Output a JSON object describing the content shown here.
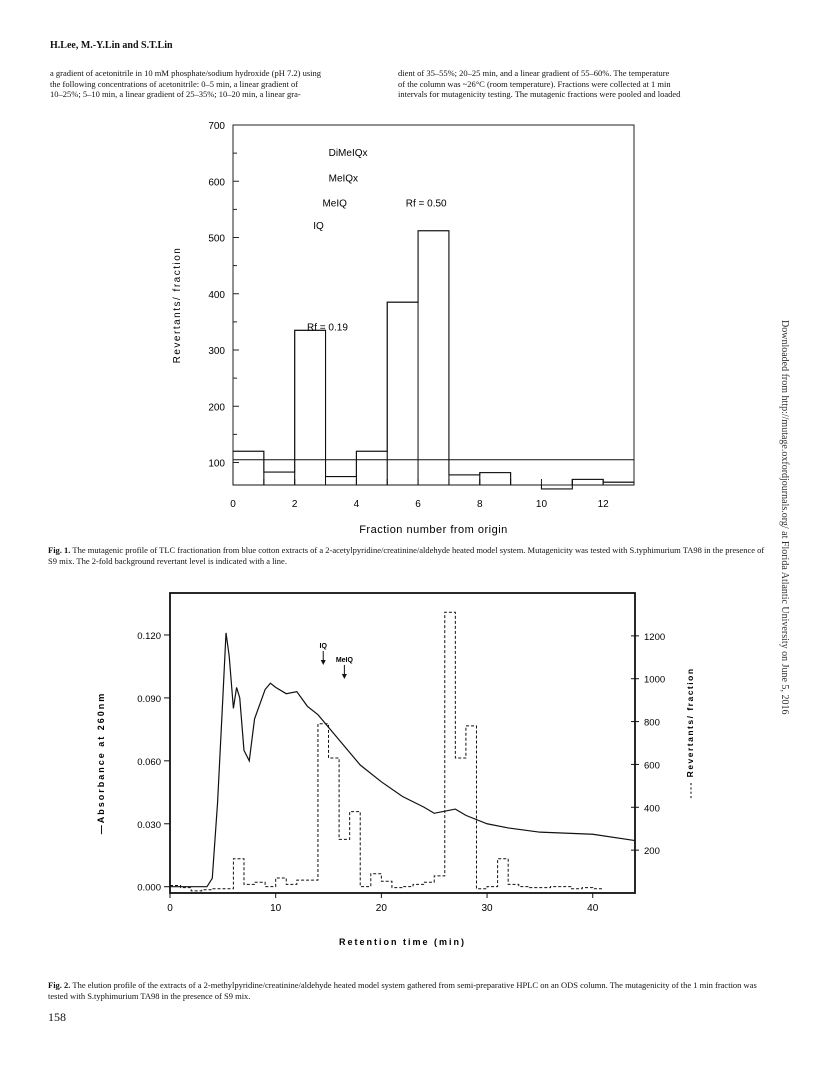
{
  "running_head": "H.Lee, M.-Y.Lin and S.T.Lin",
  "body_left": [
    "a gradient of acetonitrile in 10 mM phosphate/sodium hydroxide (pH 7.2) using",
    "the following concentrations of acetonitrile: 0–5 min, a linear gradient of",
    "10–25%; 5–10 min, a linear gradient of 25–35%; 10–20 min, a linear gra-"
  ],
  "body_right": [
    "dient of 35–55%; 20–25 min, and a linear gradient of 55–60%. The temperature",
    "of the column was ~26°C (room temperature). Fractions were collected at 1 min",
    "intervals for mutagenicity testing. The mutagenic fractions were pooled and loaded"
  ],
  "side_note": "Downloaded from http://mutage.oxfordjournals.org/ at Florida Atlantic University on June 5, 2016",
  "chart_data": [
    {
      "type": "bar",
      "subtype": "step-histogram",
      "xlabel": "Fraction  number  from  origin",
      "ylabel": "Revertants/  fraction",
      "xlim": [
        0,
        13
      ],
      "ylim": [
        60,
        700
      ],
      "x_ticks": [
        0,
        2,
        4,
        6,
        8,
        10,
        12
      ],
      "y_ticks": [
        100,
        200,
        300,
        400,
        500,
        600,
        700
      ],
      "fractions": [
        0,
        1,
        2,
        3,
        4,
        5,
        6,
        7,
        8,
        9,
        10,
        11,
        12
      ],
      "values": [
        120,
        83,
        335,
        75,
        120,
        385,
        512,
        78,
        82,
        60,
        53,
        70,
        65
      ],
      "background_line": 105,
      "annotations": [
        {
          "text": "DiMeIQx",
          "x": 3.1,
          "y": 645
        },
        {
          "text": "MeIQx",
          "x": 3.1,
          "y": 600
        },
        {
          "text": "MeIQ",
          "x": 2.9,
          "y": 555
        },
        {
          "text": "IQ",
          "x": 2.6,
          "y": 515
        },
        {
          "text": "Rf = 0.19",
          "x": 2.4,
          "y": 335
        },
        {
          "text": "Rf = 0.50",
          "x": 5.6,
          "y": 555
        }
      ],
      "grid": false
    },
    {
      "type": "line",
      "xlabel": "Retention  time   (min)",
      "ylabel": "Absorbance  at  260nm",
      "y2label": "Revertants/  fraction",
      "xlim": [
        0,
        44
      ],
      "ylim": [
        -0.003,
        0.14
      ],
      "y2lim": [
        0,
        1400
      ],
      "x_ticks": [
        0,
        10,
        20,
        30,
        40
      ],
      "y_ticks": [
        "0.000",
        "0.030",
        "0.060",
        "0.090",
        "0.120"
      ],
      "y2_ticks": [
        200,
        400,
        600,
        800,
        1000,
        1200
      ],
      "series": [
        {
          "style": "solid",
          "x": [
            0,
            3.5,
            4,
            4.5,
            5,
            5.3,
            5.6,
            6,
            6.3,
            6.6,
            7,
            7.5,
            8,
            9,
            9.5,
            10,
            11,
            12,
            13,
            14,
            16,
            18,
            20,
            22,
            24,
            25,
            26,
            27,
            28,
            30,
            32,
            35,
            40,
            44
          ],
          "y": [
            0.0,
            0.0,
            0.004,
            0.04,
            0.09,
            0.121,
            0.11,
            0.085,
            0.095,
            0.09,
            0.065,
            0.06,
            0.08,
            0.094,
            0.097,
            0.095,
            0.092,
            0.093,
            0.086,
            0.082,
            0.07,
            0.058,
            0.05,
            0.043,
            0.038,
            0.035,
            0.036,
            0.037,
            0.034,
            0.03,
            0.028,
            0.026,
            0.025,
            0.022
          ]
        },
        {
          "style": "dashed",
          "x": [
            0,
            1,
            2,
            3,
            4,
            5,
            6,
            7,
            8,
            9,
            10,
            11,
            12,
            13,
            14,
            15,
            16,
            17,
            18,
            19,
            20,
            21,
            22,
            23,
            24,
            25,
            26,
            27,
            28,
            29,
            30,
            31,
            32,
            33,
            34,
            35,
            36,
            37,
            38,
            39,
            40
          ],
          "y": [
            35,
            25,
            10,
            15,
            20,
            20,
            160,
            40,
            50,
            30,
            70,
            40,
            60,
            60,
            790,
            630,
            250,
            380,
            30,
            90,
            55,
            25,
            30,
            40,
            50,
            80,
            1310,
            630,
            780,
            20,
            30,
            160,
            40,
            30,
            25,
            25,
            30,
            30,
            20,
            25,
            20
          ]
        }
      ],
      "annotations": [
        {
          "text": "IQ",
          "x": 14.5
        },
        {
          "text": "MeIQ",
          "x": 16.5
        }
      ],
      "grid": false
    }
  ],
  "fig1": {
    "caption_label": "Fig. 1.",
    "caption_text": "The mutagenic profile of TLC fractionation from blue cotton extracts of a 2-acetylpyridine/creatinine/aldehyde heated model system. Mutagenicity was tested with S.typhimurium TA98 in the presence of S9 mix. The 2-fold background revertant level is indicated with a line."
  },
  "fig2": {
    "caption_label": "Fig. 2.",
    "caption_text": "The elution profile of the extracts of a 2-methylpyridine/creatinine/aldehyde heated model system gathered from semi-preparative HPLC on an ODS column. The mutagenicity of the 1 min fraction was tested with S.typhimurium TA98 in the presence of S9 mix."
  },
  "page_number": "158"
}
